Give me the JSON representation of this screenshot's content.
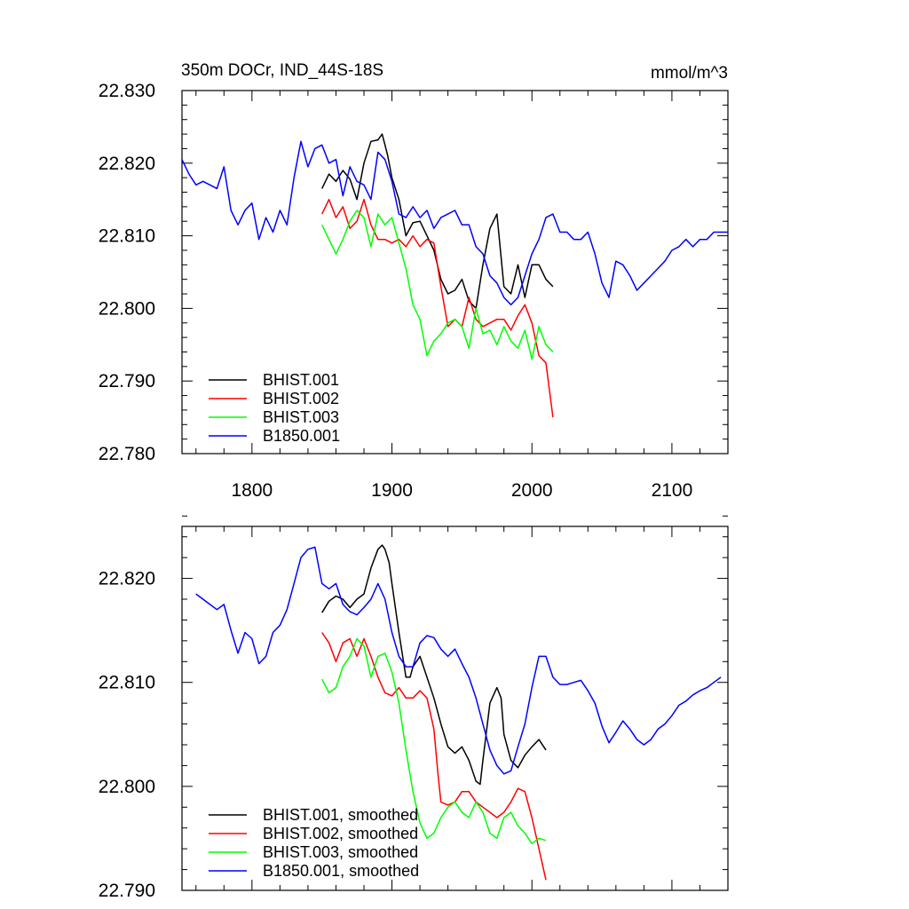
{
  "chart_data": [
    {
      "type": "line",
      "title": "350m DOCr, IND_44S-18S",
      "units": "mmol/m^3",
      "xlabel": "",
      "ylabel": "",
      "xlim": [
        1750,
        2140
      ],
      "ylim": [
        22.78,
        22.83
      ],
      "x_tick_labels": [
        "1800",
        "1900",
        "2000",
        "2100"
      ],
      "y_tick_labels": [
        "22.830",
        "22.820",
        "22.810",
        "22.800",
        "22.790",
        "22.780"
      ],
      "legend_position": "bottom-left",
      "series": [
        {
          "name": "BHIST.001",
          "color": "#000000",
          "x": [
            1850,
            1855,
            1860,
            1865,
            1870,
            1875,
            1880,
            1885,
            1890,
            1893,
            1895,
            1897,
            1900,
            1905,
            1910,
            1915,
            1920,
            1925,
            1930,
            1935,
            1940,
            1945,
            1950,
            1955,
            1960,
            1965,
            1970,
            1975,
            1980,
            1985,
            1990,
            1995,
            2000,
            2005,
            2010,
            2015
          ],
          "values": [
            22.8165,
            22.8185,
            22.8175,
            22.819,
            22.8178,
            22.815,
            22.82,
            22.823,
            22.8232,
            22.824,
            22.8225,
            22.821,
            22.818,
            22.815,
            22.81,
            22.8118,
            22.812,
            22.81,
            22.808,
            22.804,
            22.802,
            22.8025,
            22.804,
            22.801,
            22.8,
            22.806,
            22.811,
            22.813,
            22.803,
            22.802,
            22.806,
            22.8015,
            22.806,
            22.806,
            22.804,
            22.803
          ]
        },
        {
          "name": "BHIST.002",
          "color": "#ff0000",
          "x": [
            1850,
            1855,
            1860,
            1865,
            1870,
            1875,
            1880,
            1885,
            1890,
            1895,
            1900,
            1905,
            1910,
            1915,
            1920,
            1925,
            1930,
            1935,
            1940,
            1945,
            1950,
            1955,
            1960,
            1965,
            1970,
            1975,
            1980,
            1985,
            1990,
            1995,
            2000,
            2005,
            2010,
            2015
          ],
          "values": [
            22.813,
            22.815,
            22.8125,
            22.814,
            22.811,
            22.812,
            22.815,
            22.8115,
            22.8095,
            22.8095,
            22.809,
            22.8095,
            22.8085,
            22.81,
            22.8085,
            22.8095,
            22.809,
            22.803,
            22.7975,
            22.7985,
            22.7975,
            22.8015,
            22.7985,
            22.7975,
            22.798,
            22.7985,
            22.7985,
            22.797,
            22.799,
            22.8005,
            22.798,
            22.7935,
            22.7925,
            22.785
          ]
        },
        {
          "name": "BHIST.003",
          "color": "#00ff00",
          "x": [
            1850,
            1855,
            1860,
            1865,
            1870,
            1875,
            1880,
            1885,
            1890,
            1895,
            1900,
            1905,
            1910,
            1915,
            1920,
            1925,
            1930,
            1935,
            1940,
            1945,
            1950,
            1955,
            1960,
            1965,
            1970,
            1975,
            1980,
            1985,
            1990,
            1995,
            2000,
            2005,
            2010,
            2015
          ],
          "values": [
            22.8115,
            22.8095,
            22.8075,
            22.8095,
            22.812,
            22.8135,
            22.8125,
            22.8085,
            22.813,
            22.8115,
            22.8125,
            22.809,
            22.8055,
            22.8005,
            22.7985,
            22.7935,
            22.7955,
            22.7965,
            22.798,
            22.7985,
            22.7975,
            22.7945,
            22.8,
            22.7965,
            22.797,
            22.795,
            22.7975,
            22.7955,
            22.7945,
            22.797,
            22.793,
            22.7975,
            22.795,
            22.794
          ]
        },
        {
          "name": "B1850.001",
          "color": "#0000ff",
          "x": [
            1750,
            1755,
            1760,
            1765,
            1770,
            1775,
            1780,
            1785,
            1790,
            1795,
            1800,
            1805,
            1810,
            1815,
            1820,
            1825,
            1830,
            1835,
            1840,
            1845,
            1850,
            1855,
            1860,
            1865,
            1870,
            1875,
            1880,
            1885,
            1890,
            1895,
            1900,
            1905,
            1910,
            1915,
            1920,
            1925,
            1930,
            1935,
            1940,
            1945,
            1950,
            1955,
            1960,
            1965,
            1970,
            1975,
            1980,
            1985,
            1990,
            1995,
            2000,
            2005,
            2010,
            2015,
            2020,
            2025,
            2030,
            2035,
            2040,
            2045,
            2050,
            2055,
            2060,
            2065,
            2070,
            2075,
            2080,
            2085,
            2090,
            2095,
            2100,
            2105,
            2110,
            2115,
            2120,
            2125,
            2130,
            2135,
            2140
          ],
          "values": [
            22.8205,
            22.8185,
            22.817,
            22.8175,
            22.817,
            22.8165,
            22.8195,
            22.8135,
            22.8115,
            22.8135,
            22.8145,
            22.8095,
            22.8125,
            22.8105,
            22.8135,
            22.8115,
            22.818,
            22.823,
            22.8195,
            22.822,
            22.8225,
            22.82,
            22.8205,
            22.8155,
            22.8195,
            22.8175,
            22.817,
            22.815,
            22.8215,
            22.8205,
            22.8175,
            22.813,
            22.8125,
            22.814,
            22.8125,
            22.8135,
            22.811,
            22.8125,
            22.813,
            22.8135,
            22.8115,
            22.8115,
            22.8085,
            22.8075,
            22.8045,
            22.8035,
            22.8015,
            22.8005,
            22.8015,
            22.8045,
            22.8075,
            22.8095,
            22.8125,
            22.813,
            22.8105,
            22.8105,
            22.8095,
            22.8095,
            22.8105,
            22.8075,
            22.8035,
            22.8015,
            22.8065,
            22.806,
            22.8045,
            22.8025,
            22.8035,
            22.8045,
            22.8055,
            22.8065,
            22.808,
            22.8085,
            22.8095,
            22.8085,
            22.8095,
            22.8095,
            22.8105,
            22.8105,
            22.8105
          ]
        }
      ]
    },
    {
      "type": "line",
      "title": "",
      "xlabel": "",
      "ylabel": "",
      "xlim": [
        1750,
        2140
      ],
      "ylim": [
        22.79,
        22.825
      ],
      "y_tick_labels": [
        "22.820",
        "22.810",
        "22.800",
        "22.790"
      ],
      "legend_position": "bottom-left",
      "series": [
        {
          "name": "BHIST.001, smoothed",
          "color": "#000000",
          "x": [
            1850,
            1855,
            1860,
            1865,
            1870,
            1875,
            1880,
            1885,
            1890,
            1893,
            1895,
            1898,
            1900,
            1905,
            1910,
            1913,
            1915,
            1920,
            1925,
            1930,
            1935,
            1940,
            1945,
            1950,
            1955,
            1960,
            1963,
            1965,
            1970,
            1975,
            1978,
            1980,
            1985,
            1990,
            1995,
            2000,
            2005,
            2010
          ],
          "values": [
            22.8167,
            22.8178,
            22.8183,
            22.818,
            22.8172,
            22.818,
            22.8185,
            22.821,
            22.8228,
            22.8232,
            22.8228,
            22.8215,
            22.8195,
            22.8148,
            22.8105,
            22.8105,
            22.8115,
            22.8125,
            22.8105,
            22.8085,
            22.806,
            22.8038,
            22.8032,
            22.8038,
            22.8025,
            22.8005,
            22.8002,
            22.8025,
            22.808,
            22.8095,
            22.8085,
            22.805,
            22.8025,
            22.8018,
            22.803,
            22.8038,
            22.8045,
            22.8035
          ]
        },
        {
          "name": "BHIST.002, smoothed",
          "color": "#ff0000",
          "x": [
            1850,
            1855,
            1860,
            1865,
            1870,
            1875,
            1880,
            1885,
            1890,
            1895,
            1900,
            1905,
            1910,
            1915,
            1920,
            1925,
            1930,
            1933,
            1935,
            1940,
            1945,
            1950,
            1955,
            1960,
            1965,
            1970,
            1975,
            1980,
            1985,
            1990,
            1995,
            2000,
            2005,
            2010
          ],
          "values": [
            22.8148,
            22.8138,
            22.812,
            22.8138,
            22.8142,
            22.8125,
            22.8142,
            22.8125,
            22.8105,
            22.809,
            22.8087,
            22.8095,
            22.8085,
            22.8085,
            22.8092,
            22.8085,
            22.8055,
            22.801,
            22.7985,
            22.7982,
            22.7985,
            22.7995,
            22.7995,
            22.7985,
            22.798,
            22.7975,
            22.797,
            22.7975,
            22.7985,
            22.7998,
            22.7995,
            22.797,
            22.794,
            22.791
          ]
        },
        {
          "name": "BHIST.003, smoothed",
          "color": "#00ff00",
          "x": [
            1850,
            1855,
            1860,
            1865,
            1870,
            1875,
            1880,
            1885,
            1890,
            1895,
            1900,
            1905,
            1910,
            1915,
            1920,
            1925,
            1930,
            1935,
            1940,
            1945,
            1950,
            1955,
            1960,
            1965,
            1970,
            1975,
            1980,
            1985,
            1990,
            1995,
            2000,
            2005,
            2010
          ],
          "values": [
            22.8103,
            22.809,
            22.8095,
            22.8115,
            22.8125,
            22.8142,
            22.8135,
            22.8105,
            22.8125,
            22.8128,
            22.811,
            22.808,
            22.8035,
            22.7995,
            22.7965,
            22.795,
            22.7955,
            22.797,
            22.798,
            22.7985,
            22.7975,
            22.797,
            22.7985,
            22.7975,
            22.7955,
            22.795,
            22.797,
            22.7975,
            22.7962,
            22.7955,
            22.7945,
            22.795,
            22.7948
          ]
        },
        {
          "name": "B1850.001, smoothed",
          "color": "#0000ff",
          "x": [
            1760,
            1765,
            1770,
            1775,
            1780,
            1785,
            1790,
            1795,
            1800,
            1805,
            1810,
            1815,
            1820,
            1825,
            1830,
            1835,
            1840,
            1845,
            1850,
            1855,
            1860,
            1865,
            1870,
            1875,
            1880,
            1885,
            1890,
            1895,
            1900,
            1905,
            1910,
            1915,
            1920,
            1925,
            1930,
            1935,
            1940,
            1945,
            1950,
            1955,
            1960,
            1965,
            1970,
            1975,
            1980,
            1985,
            1990,
            1995,
            2000,
            2005,
            2010,
            2015,
            2020,
            2025,
            2030,
            2035,
            2040,
            2045,
            2050,
            2055,
            2060,
            2065,
            2070,
            2075,
            2080,
            2085,
            2090,
            2095,
            2100,
            2105,
            2110,
            2115,
            2120,
            2125,
            2130,
            2135
          ],
          "values": [
            22.8185,
            22.818,
            22.8175,
            22.817,
            22.8175,
            22.815,
            22.8128,
            22.8148,
            22.8142,
            22.8118,
            22.8125,
            22.8148,
            22.8155,
            22.817,
            22.8195,
            22.822,
            22.8228,
            22.823,
            22.8195,
            22.819,
            22.8195,
            22.8175,
            22.8168,
            22.8165,
            22.8172,
            22.818,
            22.8195,
            22.818,
            22.8148,
            22.8125,
            22.8115,
            22.8115,
            22.8138,
            22.8145,
            22.8143,
            22.8132,
            22.8125,
            22.8132,
            22.8118,
            22.8105,
            22.8085,
            22.806,
            22.8035,
            22.802,
            22.8012,
            22.8015,
            22.8038,
            22.806,
            22.8095,
            22.8125,
            22.8125,
            22.8105,
            22.8098,
            22.8098,
            22.81,
            22.8102,
            22.8092,
            22.808,
            22.8058,
            22.8042,
            22.8052,
            22.8063,
            22.8055,
            22.8045,
            22.804,
            22.8045,
            22.8055,
            22.806,
            22.8068,
            22.8078,
            22.8082,
            22.8088,
            22.8092,
            22.8095,
            22.81,
            22.8105
          ]
        }
      ]
    }
  ]
}
